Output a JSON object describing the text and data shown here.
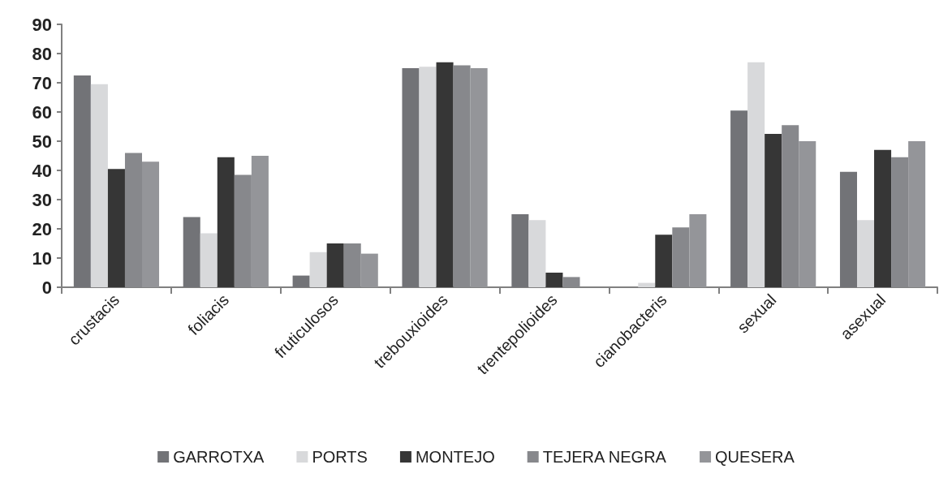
{
  "chart_data": {
    "type": "bar",
    "categories": [
      "crustacis",
      "foliacis",
      "fruticulosos",
      "trebouxioides",
      "trentepolioides",
      "cianobacteris",
      "sexual",
      "asexual"
    ],
    "series": [
      {
        "name": "GARROTXA",
        "color": "#727377",
        "values": [
          72.5,
          24,
          4,
          75,
          25,
          0,
          60.5,
          39.5
        ]
      },
      {
        "name": "PORTS",
        "color": "#d8d9db",
        "values": [
          69.5,
          18.5,
          12,
          75.5,
          23,
          1.5,
          77,
          23
        ]
      },
      {
        "name": "MONTEJO",
        "color": "#363636",
        "values": [
          40.5,
          44.5,
          15,
          77,
          5,
          18,
          52.5,
          47
        ]
      },
      {
        "name": "TEJERA NEGRA",
        "color": "#87888c",
        "values": [
          46,
          38.5,
          15,
          76,
          3.5,
          20.5,
          55.5,
          44.5
        ]
      },
      {
        "name": "QUESERA",
        "color": "#949599",
        "values": [
          43,
          45,
          11.5,
          75,
          0,
          25,
          50,
          50
        ]
      }
    ],
    "ylim": [
      0,
      90
    ],
    "yticks": [
      0,
      10,
      20,
      30,
      40,
      50,
      60,
      70,
      80,
      90
    ],
    "grid": false,
    "legend": "bottom"
  }
}
